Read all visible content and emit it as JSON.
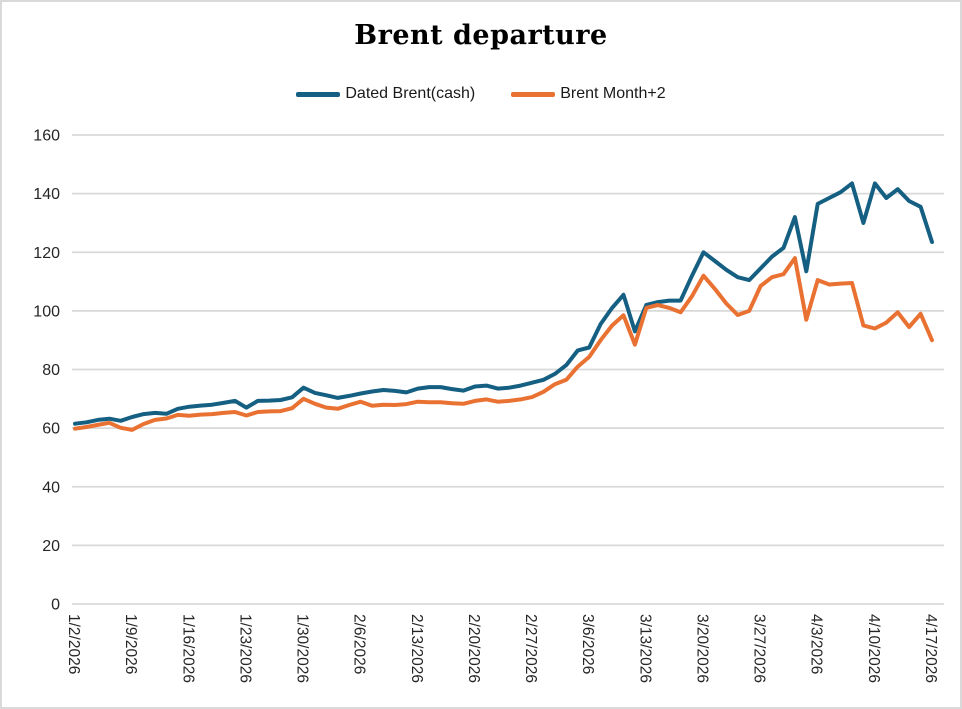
{
  "frame": {
    "background": "#FFFFFF",
    "border_color": "#D9D9D9",
    "text_color": "#262626",
    "gridline_color": "#D9D9D9"
  },
  "chart_data": {
    "type": "line",
    "title": "Brent departure",
    "legend_position": "top",
    "grid": "horizontal",
    "ylim": [
      0,
      160
    ],
    "y_ticks": [
      0,
      20,
      40,
      60,
      80,
      100,
      120,
      140,
      160
    ],
    "x_tick_labels": [
      "1/2/2026",
      "1/9/2026",
      "1/16/2026",
      "1/23/2026",
      "1/30/2026",
      "2/6/2026",
      "2/13/2026",
      "2/20/2026",
      "2/27/2026",
      "3/6/2026",
      "3/13/2026",
      "3/20/2026",
      "3/27/2026",
      "4/3/2026",
      "4/10/2026",
      "4/17/2026"
    ],
    "x_tick_every": 5,
    "x": [
      "1/2",
      "1/5",
      "1/6",
      "1/7",
      "1/8",
      "1/9",
      "1/12",
      "1/13",
      "1/14",
      "1/15",
      "1/16",
      "1/19",
      "1/20",
      "1/21",
      "1/22",
      "1/23",
      "1/26",
      "1/27",
      "1/28",
      "1/29",
      "1/30",
      "2/2",
      "2/3",
      "2/4",
      "2/5",
      "2/6",
      "2/9",
      "2/10",
      "2/11",
      "2/12",
      "2/13",
      "2/16",
      "2/17",
      "2/18",
      "2/19",
      "2/20",
      "2/23",
      "2/24",
      "2/25",
      "2/26",
      "2/27",
      "3/2",
      "3/3",
      "3/4",
      "3/5",
      "3/6",
      "3/9",
      "3/10",
      "3/11",
      "3/12",
      "3/13",
      "3/16",
      "3/17",
      "3/18",
      "3/19",
      "3/20",
      "3/23",
      "3/24",
      "3/25",
      "3/26",
      "3/27",
      "3/30",
      "3/31",
      "4/1",
      "4/2",
      "4/3",
      "4/6",
      "4/7",
      "4/8",
      "4/9",
      "4/10",
      "4/13",
      "4/14",
      "4/15",
      "4/16",
      "4/17"
    ],
    "series": [
      {
        "name": "Dated Brent(cash)",
        "color": "#156082",
        "values": [
          61.5,
          62.0,
          62.8,
          63.2,
          62.5,
          63.8,
          64.8,
          65.2,
          64.9,
          66.6,
          67.3,
          67.7,
          68.0,
          68.6,
          69.3,
          67.0,
          69.3,
          69.4,
          69.6,
          70.5,
          73.8,
          72.0,
          71.2,
          70.3,
          71.0,
          71.8,
          72.5,
          73.0,
          72.7,
          72.2,
          73.5,
          74.0,
          74.0,
          73.3,
          72.8,
          74.2,
          74.5,
          73.5,
          73.8,
          74.5,
          75.5,
          76.5,
          78.5,
          81.5,
          86.5,
          87.5,
          95.5,
          101.0,
          105.5,
          93.0,
          102.0,
          103.0,
          103.5,
          103.5,
          112.0,
          120.0,
          117.0,
          114.0,
          111.5,
          110.5,
          114.5,
          118.5,
          121.5,
          132.0,
          113.5,
          136.5,
          138.5,
          140.5,
          143.5,
          130.0,
          143.5,
          138.5,
          141.5,
          137.5,
          135.5,
          123.5
        ]
      },
      {
        "name": "Brent Month+2",
        "color": "#E97132",
        "values": [
          59.8,
          60.4,
          61.1,
          61.8,
          60.1,
          59.4,
          61.4,
          62.8,
          63.3,
          64.5,
          64.2,
          64.6,
          64.8,
          65.2,
          65.5,
          64.3,
          65.5,
          65.7,
          65.8,
          66.8,
          70.0,
          68.3,
          67.0,
          66.6,
          67.9,
          69.0,
          67.6,
          68.0,
          67.9,
          68.2,
          69.0,
          68.8,
          68.8,
          68.5,
          68.3,
          69.3,
          69.8,
          69.0,
          69.3,
          69.8,
          70.6,
          72.4,
          75.0,
          76.5,
          81.0,
          84.3,
          90.0,
          95.0,
          98.5,
          88.5,
          101.0,
          102.0,
          101.0,
          99.5,
          105.0,
          112.0,
          107.5,
          102.5,
          98.6,
          100.0,
          108.5,
          111.5,
          112.5,
          118.0,
          97.0,
          110.5,
          109.0,
          109.3,
          109.5,
          95.0,
          94.0,
          96.0,
          99.5,
          94.5,
          99.0,
          90.0
        ]
      }
    ]
  }
}
